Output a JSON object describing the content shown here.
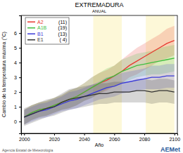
{
  "chart_data": {
    "type": "line",
    "title": "EXTREMADURA",
    "subtitle": "ANUAL",
    "x_label": "Año",
    "y_label": "Cambio de la temperatura máxima (°C)",
    "source": "Agencia Estatal de Meteorología",
    "logo": "AEMet",
    "x": [
      2000,
      2005,
      2010,
      2015,
      2020,
      2025,
      2030,
      2035,
      2040,
      2045,
      2050,
      2055,
      2060,
      2065,
      2070,
      2075,
      2080,
      2085,
      2090,
      2095,
      2100
    ],
    "xlim": [
      1998,
      2102
    ],
    "xticks": [
      2000,
      2020,
      2040,
      2060,
      2080,
      2100
    ],
    "ylim": [
      -0.8,
      7.2
    ],
    "yticks": [
      0,
      1,
      2,
      3,
      4,
      5,
      6
    ],
    "shaded_periods": [
      [
        2046,
        2065
      ],
      [
        2081,
        2100
      ]
    ],
    "legend": "top-left",
    "series": [
      {
        "name": "A2",
        "models_label": "(11)",
        "color": "#e8392f",
        "values": [
          0.3,
          0.6,
          0.8,
          0.9,
          1.1,
          1.3,
          1.5,
          1.7,
          2.0,
          2.3,
          2.6,
          2.8,
          3.1,
          3.4,
          3.8,
          4.1,
          4.4,
          4.7,
          5.0,
          5.3,
          5.5
        ],
        "lower": [
          -0.2,
          0.1,
          0.3,
          0.4,
          0.6,
          0.8,
          0.9,
          1.1,
          1.4,
          1.6,
          1.9,
          2.1,
          2.4,
          2.6,
          3.0,
          3.2,
          3.5,
          3.8,
          4.1,
          4.3,
          4.5
        ],
        "upper": [
          0.8,
          1.1,
          1.3,
          1.4,
          1.6,
          1.8,
          2.1,
          2.3,
          2.6,
          3.0,
          3.3,
          3.5,
          3.8,
          4.2,
          4.6,
          5.0,
          5.3,
          5.6,
          5.9,
          6.3,
          6.5
        ]
      },
      {
        "name": "A1B",
        "models_label": "(19)",
        "color": "#3fbf3f",
        "values": [
          0.3,
          0.6,
          0.8,
          0.9,
          1.1,
          1.3,
          1.5,
          1.7,
          2.0,
          2.3,
          2.6,
          2.9,
          3.1,
          3.4,
          3.6,
          3.8,
          3.9,
          4.0,
          4.1,
          4.2,
          4.3
        ],
        "lower": [
          -0.2,
          0.1,
          0.3,
          0.4,
          0.6,
          0.8,
          0.9,
          1.1,
          1.4,
          1.6,
          1.9,
          2.2,
          2.4,
          2.6,
          2.8,
          3.0,
          3.1,
          3.2,
          3.2,
          3.3,
          3.4
        ],
        "upper": [
          0.8,
          1.1,
          1.3,
          1.4,
          1.6,
          1.8,
          2.1,
          2.3,
          2.6,
          3.0,
          3.3,
          3.6,
          3.8,
          4.2,
          4.4,
          4.6,
          4.7,
          4.8,
          5.0,
          5.1,
          5.2
        ]
      },
      {
        "name": "B1",
        "models_label": "(13)",
        "color": "#3a3ad8",
        "values": [
          0.3,
          0.5,
          0.7,
          0.8,
          1.0,
          1.2,
          1.4,
          1.5,
          1.7,
          1.9,
          2.1,
          2.3,
          2.4,
          2.6,
          2.7,
          2.8,
          2.9,
          3.0,
          3.0,
          3.1,
          3.1
        ],
        "lower": [
          -0.2,
          0.0,
          0.2,
          0.3,
          0.5,
          0.7,
          0.8,
          0.9,
          1.1,
          1.3,
          1.5,
          1.6,
          1.7,
          1.9,
          2.0,
          2.1,
          2.2,
          2.2,
          2.2,
          2.3,
          2.3
        ],
        "upper": [
          0.8,
          1.0,
          1.2,
          1.3,
          1.5,
          1.7,
          2.0,
          2.1,
          2.3,
          2.5,
          2.7,
          3.0,
          3.1,
          3.3,
          3.4,
          3.5,
          3.6,
          3.8,
          3.8,
          3.9,
          3.9
        ]
      },
      {
        "name": "E1",
        "models_label": "( 4)",
        "color": "#333333",
        "values": [
          0.3,
          0.5,
          0.7,
          0.9,
          1.0,
          1.3,
          1.5,
          1.6,
          1.7,
          1.8,
          1.9,
          1.9,
          2.0,
          2.0,
          2.0,
          2.1,
          2.1,
          2.0,
          2.1,
          2.1,
          2.0
        ],
        "lower": [
          -0.3,
          -0.1,
          0.1,
          0.3,
          0.4,
          0.6,
          0.8,
          0.9,
          1.0,
          1.1,
          1.2,
          1.2,
          1.3,
          1.3,
          1.3,
          1.3,
          1.3,
          1.2,
          1.3,
          1.3,
          1.2
        ],
        "upper": [
          0.9,
          1.1,
          1.3,
          1.5,
          1.6,
          1.9,
          2.2,
          2.3,
          2.4,
          2.5,
          2.6,
          2.6,
          2.7,
          2.7,
          2.7,
          2.9,
          2.9,
          2.8,
          2.9,
          2.9,
          2.8
        ]
      }
    ]
  }
}
